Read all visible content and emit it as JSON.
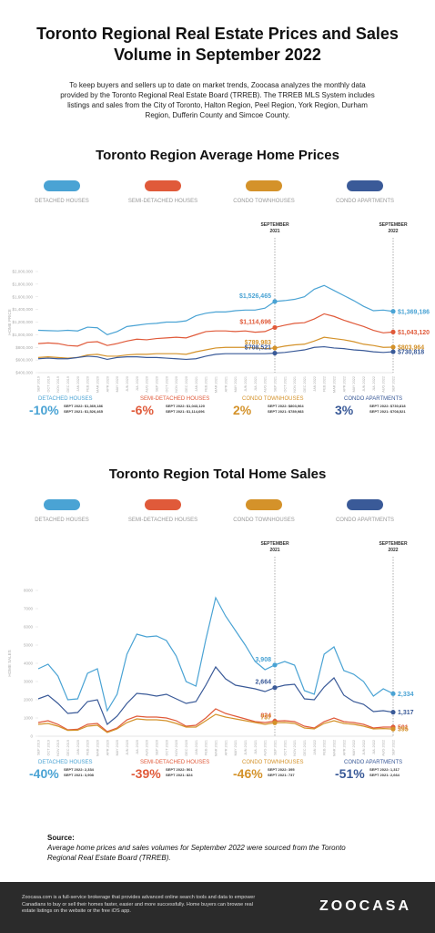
{
  "header": {
    "title": "Toronto Regional Real Estate Prices and Sales Volume in September 2022",
    "intro": "To keep buyers and sellers up to date on market trends, Zoocasa analyzes the monthly data provided by the Toronto Regional Real Estate Board (TRREB). The TRREB MLS System includes listings and sales from the City of Toronto, Halton Region, Peel Region, York Region, Durham Region, Dufferin County and Simcoe County."
  },
  "chart_data": [
    {
      "type": "line",
      "title": "Toronto Region Average Home Prices",
      "y_label": "HOME PRICE",
      "categories": [
        "SEP 2019",
        "OCT 2019",
        "NOV 2019",
        "DEC 2019",
        "JAN 2020",
        "FEB 2020",
        "MAR 2020",
        "APR 2020",
        "MAY 2020",
        "JUN 2020",
        "JUL 2020",
        "AUG 2020",
        "SEP 2020",
        "OCT 2020",
        "NOV 2020",
        "DEC 2020",
        "JAN 2021",
        "FEB 2021",
        "MAR 2021",
        "APR 2021",
        "MAY 2021",
        "JUN 2021",
        "JUL 2021",
        "AUG 2021",
        "SEP 2021",
        "OCT 2021",
        "NOV 2021",
        "DEC 2021",
        "JAN 2022",
        "FEB 2022",
        "MAR 2022",
        "APR 2022",
        "MAY 2022",
        "JUN 2022",
        "JUL 2022",
        "AUG 2022",
        "SEP 2022"
      ],
      "ylim": [
        400000,
        2000000
      ],
      "yticks": [
        {
          "value": 400000,
          "label": "$400,000"
        },
        {
          "value": 600000,
          "label": "$600,000"
        },
        {
          "value": 800000,
          "label": "$800,000"
        },
        {
          "value": 1000000,
          "label": "$1,000,000"
        },
        {
          "value": 1200000,
          "label": "$1,200,000"
        },
        {
          "value": 1400000,
          "label": "$1,400,000"
        },
        {
          "value": 1600000,
          "label": "$1,600,000"
        },
        {
          "value": 1800000,
          "label": "$1,800,000"
        },
        {
          "value": 2000000,
          "label": "$2,000,000"
        }
      ],
      "series": [
        {
          "name": "DETACHED HOUSES",
          "color": "#4aa3d4",
          "values": [
            1070000,
            1065000,
            1060000,
            1070000,
            1060000,
            1120000,
            1110000,
            1000000,
            1050000,
            1130000,
            1150000,
            1170000,
            1180000,
            1200000,
            1200000,
            1220000,
            1300000,
            1340000,
            1360000,
            1360000,
            1380000,
            1390000,
            1390000,
            1420000,
            1526465,
            1540000,
            1560000,
            1600000,
            1720000,
            1780000,
            1700000,
            1620000,
            1540000,
            1450000,
            1380000,
            1390000,
            1369186
          ],
          "value_labels": [
            null,
            null,
            null,
            null,
            null,
            null,
            null,
            null,
            null,
            null,
            null,
            null,
            null,
            null,
            null,
            null,
            null,
            null,
            null,
            null,
            null,
            null,
            null,
            null,
            "$1,526,465",
            null,
            null,
            null,
            null,
            null,
            null,
            null,
            null,
            null,
            null,
            null,
            "$1,369,186"
          ]
        },
        {
          "name": "SEMI-DETACHED HOUSES",
          "color": "#e05a3a",
          "values": [
            860000,
            870000,
            860000,
            830000,
            820000,
            880000,
            890000,
            830000,
            860000,
            900000,
            930000,
            920000,
            940000,
            950000,
            960000,
            950000,
            1000000,
            1050000,
            1060000,
            1060000,
            1050000,
            1060000,
            1040000,
            1050000,
            1114696,
            1150000,
            1180000,
            1190000,
            1250000,
            1330000,
            1290000,
            1230000,
            1180000,
            1130000,
            1070000,
            1030000,
            1043120
          ],
          "value_labels": [
            null,
            null,
            null,
            null,
            null,
            null,
            null,
            null,
            null,
            null,
            null,
            null,
            null,
            null,
            null,
            null,
            null,
            null,
            null,
            null,
            null,
            null,
            null,
            null,
            "$1,114,696",
            null,
            null,
            null,
            null,
            null,
            null,
            null,
            null,
            null,
            null,
            null,
            "$1,043,120"
          ]
        },
        {
          "name": "CONDO TOWNHOUSES",
          "color": "#d4922a",
          "values": [
            640000,
            650000,
            640000,
            630000,
            640000,
            680000,
            690000,
            660000,
            660000,
            680000,
            690000,
            690000,
            700000,
            700000,
            700000,
            690000,
            730000,
            760000,
            790000,
            800000,
            800000,
            800000,
            790000,
            780000,
            789983,
            820000,
            840000,
            850000,
            900000,
            960000,
            940000,
            920000,
            890000,
            850000,
            830000,
            800000,
            803964
          ],
          "value_labels": [
            null,
            null,
            null,
            null,
            null,
            null,
            null,
            null,
            null,
            null,
            null,
            null,
            null,
            null,
            null,
            null,
            null,
            null,
            null,
            null,
            null,
            null,
            null,
            null,
            "$789,983",
            null,
            null,
            null,
            null,
            null,
            null,
            null,
            null,
            null,
            null,
            null,
            "$803,964"
          ]
        },
        {
          "name": "CONDO APARTMENTS",
          "color": "#3a5a98",
          "values": [
            620000,
            630000,
            620000,
            620000,
            640000,
            660000,
            650000,
            610000,
            640000,
            650000,
            650000,
            640000,
            640000,
            630000,
            620000,
            610000,
            620000,
            660000,
            690000,
            700000,
            700000,
            700000,
            700000,
            700000,
            708521,
            720000,
            740000,
            760000,
            800000,
            810000,
            790000,
            780000,
            760000,
            750000,
            730000,
            720000,
            730818
          ],
          "value_labels": [
            null,
            null,
            null,
            null,
            null,
            null,
            null,
            null,
            null,
            null,
            null,
            null,
            null,
            null,
            null,
            null,
            null,
            null,
            null,
            null,
            null,
            null,
            null,
            null,
            "$708,521",
            null,
            null,
            null,
            null,
            null,
            null,
            null,
            null,
            null,
            null,
            null,
            "$730,818"
          ]
        }
      ],
      "annotations": [
        {
          "lines": [
            "SEPTEMBER",
            "2021"
          ],
          "at": "SEP 2021"
        },
        {
          "lines": [
            "SEPTEMBER",
            "2022"
          ],
          "at": "SEP 2022"
        }
      ],
      "summary": [
        {
          "change": "-10%",
          "lines": [
            "SEPT 2022: $1,369,186",
            "SEPT 2021: $1,526,465"
          ]
        },
        {
          "change": "-6%",
          "lines": [
            "SEPT 2022: $1,043,120",
            "SEPT 2021: $1,114,696"
          ]
        },
        {
          "change": "2%",
          "lines": [
            "SEPT 2022: $803,964",
            "SEPT 2021: $789,983"
          ]
        },
        {
          "change": "3%",
          "lines": [
            "SEPT 2022: $730,818",
            "SEPT 2021: $708,521"
          ]
        }
      ]
    },
    {
      "type": "line",
      "title": "Toronto Region Total Home Sales",
      "y_label": "HOME SALES",
      "categories": [
        "SEP 2019",
        "OCT 2019",
        "NOV 2019",
        "DEC 2019",
        "JAN 2020",
        "FEB 2020",
        "MAR 2020",
        "APR 2020",
        "MAY 2020",
        "JUN 2020",
        "JUL 2020",
        "AUG 2020",
        "SEP 2020",
        "OCT 2020",
        "NOV 2020",
        "DEC 2020",
        "JAN 2021",
        "FEB 2021",
        "MAR 2021",
        "APR 2021",
        "MAY 2021",
        "JUN 2021",
        "JUL 2021",
        "AUG 2021",
        "SEP 2021",
        "OCT 2021",
        "NOV 2021",
        "DEC 2021",
        "JAN 2022",
        "FEB 2022",
        "MAR 2022",
        "APR 2022",
        "MAY 2022",
        "JUN 2022",
        "JUL 2022",
        "AUG 2022",
        "SEP 2022"
      ],
      "ylim": [
        0,
        8000
      ],
      "yticks": [
        0,
        1000,
        2000,
        3000,
        4000,
        5000,
        6000,
        7000,
        8000
      ],
      "series": [
        {
          "name": "DETACHED HOUSES",
          "color": "#4aa3d4",
          "values": [
            3700,
            3950,
            3300,
            2000,
            2050,
            3450,
            3700,
            1400,
            2300,
            4500,
            5600,
            5450,
            5500,
            5250,
            4400,
            3000,
            2750,
            5300,
            7600,
            6600,
            5800,
            5000,
            4100,
            3650,
            3908,
            4100,
            3900,
            2500,
            2300,
            4500,
            4900,
            3600,
            3400,
            3000,
            2200,
            2600,
            2334
          ],
          "value_labels": [
            null,
            null,
            null,
            null,
            null,
            null,
            null,
            null,
            null,
            null,
            null,
            null,
            null,
            null,
            null,
            null,
            null,
            null,
            null,
            null,
            null,
            null,
            null,
            null,
            "3,908",
            null,
            null,
            null,
            null,
            null,
            null,
            null,
            null,
            null,
            null,
            null,
            "2,334"
          ]
        },
        {
          "name": "SEMI-DETACHED HOUSES",
          "color": "#e05a3a",
          "values": [
            750,
            850,
            650,
            350,
            380,
            650,
            700,
            250,
            450,
            900,
            1100,
            1050,
            1050,
            1000,
            850,
            550,
            600,
            1000,
            1500,
            1250,
            1100,
            950,
            800,
            750,
            824,
            850,
            800,
            550,
            450,
            800,
            1000,
            800,
            750,
            650,
            450,
            500,
            501
          ],
          "value_labels": [
            null,
            null,
            null,
            null,
            null,
            null,
            null,
            null,
            null,
            null,
            null,
            null,
            null,
            null,
            null,
            null,
            null,
            null,
            null,
            null,
            null,
            null,
            null,
            null,
            "824",
            null,
            null,
            null,
            null,
            null,
            null,
            null,
            null,
            null,
            null,
            null,
            "501"
          ]
        },
        {
          "name": "CONDO TOWNHOUSES",
          "color": "#d4922a",
          "values": [
            650,
            700,
            550,
            320,
            330,
            550,
            600,
            200,
            400,
            750,
            950,
            900,
            900,
            850,
            700,
            500,
            500,
            850,
            1200,
            1050,
            950,
            850,
            750,
            650,
            737,
            750,
            700,
            450,
            400,
            700,
            850,
            700,
            650,
            550,
            400,
            420,
            395
          ],
          "value_labels": [
            null,
            null,
            null,
            null,
            null,
            null,
            null,
            null,
            null,
            null,
            null,
            null,
            null,
            null,
            null,
            null,
            null,
            null,
            null,
            null,
            null,
            null,
            null,
            null,
            "737",
            null,
            null,
            null,
            null,
            null,
            null,
            null,
            null,
            null,
            null,
            null,
            "395"
          ]
        },
        {
          "name": "CONDO APARTMENTS",
          "color": "#3a5a98",
          "values": [
            2050,
            2250,
            1800,
            1250,
            1300,
            1900,
            2000,
            650,
            1100,
            1800,
            2350,
            2300,
            2200,
            2300,
            2050,
            1800,
            1900,
            2800,
            3800,
            3150,
            2800,
            2700,
            2600,
            2450,
            2664,
            2800,
            2850,
            2050,
            2000,
            2700,
            3200,
            2250,
            1900,
            1750,
            1350,
            1400,
            1317
          ],
          "value_labels": [
            null,
            null,
            null,
            null,
            null,
            null,
            null,
            null,
            null,
            null,
            null,
            null,
            null,
            null,
            null,
            null,
            null,
            null,
            null,
            null,
            null,
            null,
            null,
            null,
            "2,664",
            null,
            null,
            null,
            null,
            null,
            null,
            null,
            null,
            null,
            null,
            null,
            "1,317"
          ]
        }
      ],
      "annotations": [
        {
          "lines": [
            "SEPTEMBER",
            "2021"
          ],
          "at": "SEP 2021"
        },
        {
          "lines": [
            "SEPTEMBER",
            "2022"
          ],
          "at": "SEP 2022"
        }
      ],
      "summary": [
        {
          "change": "-40%",
          "lines": [
            "SEPT 2022: 2,334",
            "SEPT 2021: 3,908"
          ]
        },
        {
          "change": "-39%",
          "lines": [
            "SEPT 2022: 501",
            "SEPT 2021: 824"
          ]
        },
        {
          "change": "-46%",
          "lines": [
            "SEPT 2022: 395",
            "SEPT 2021: 737"
          ]
        },
        {
          "change": "-51%",
          "lines": [
            "SEPT 2022: 1,317",
            "SEPT 2021: 2,664"
          ]
        }
      ]
    }
  ],
  "source": {
    "label": "Source:",
    "text": "Average home prices and sales volumes for September 2022 were sourced from the Toronto Regional Real Estate Board (TRREB)."
  },
  "footer": {
    "text": "Zoocasa.com is a full-service brokerage that provides advanced online search tools and data to empower Canadians to buy or sell their homes faster, easier and more successfully. Home buyers can browse real estate listings on the website or the free iOS app.",
    "logo": "ZOOCASA"
  }
}
